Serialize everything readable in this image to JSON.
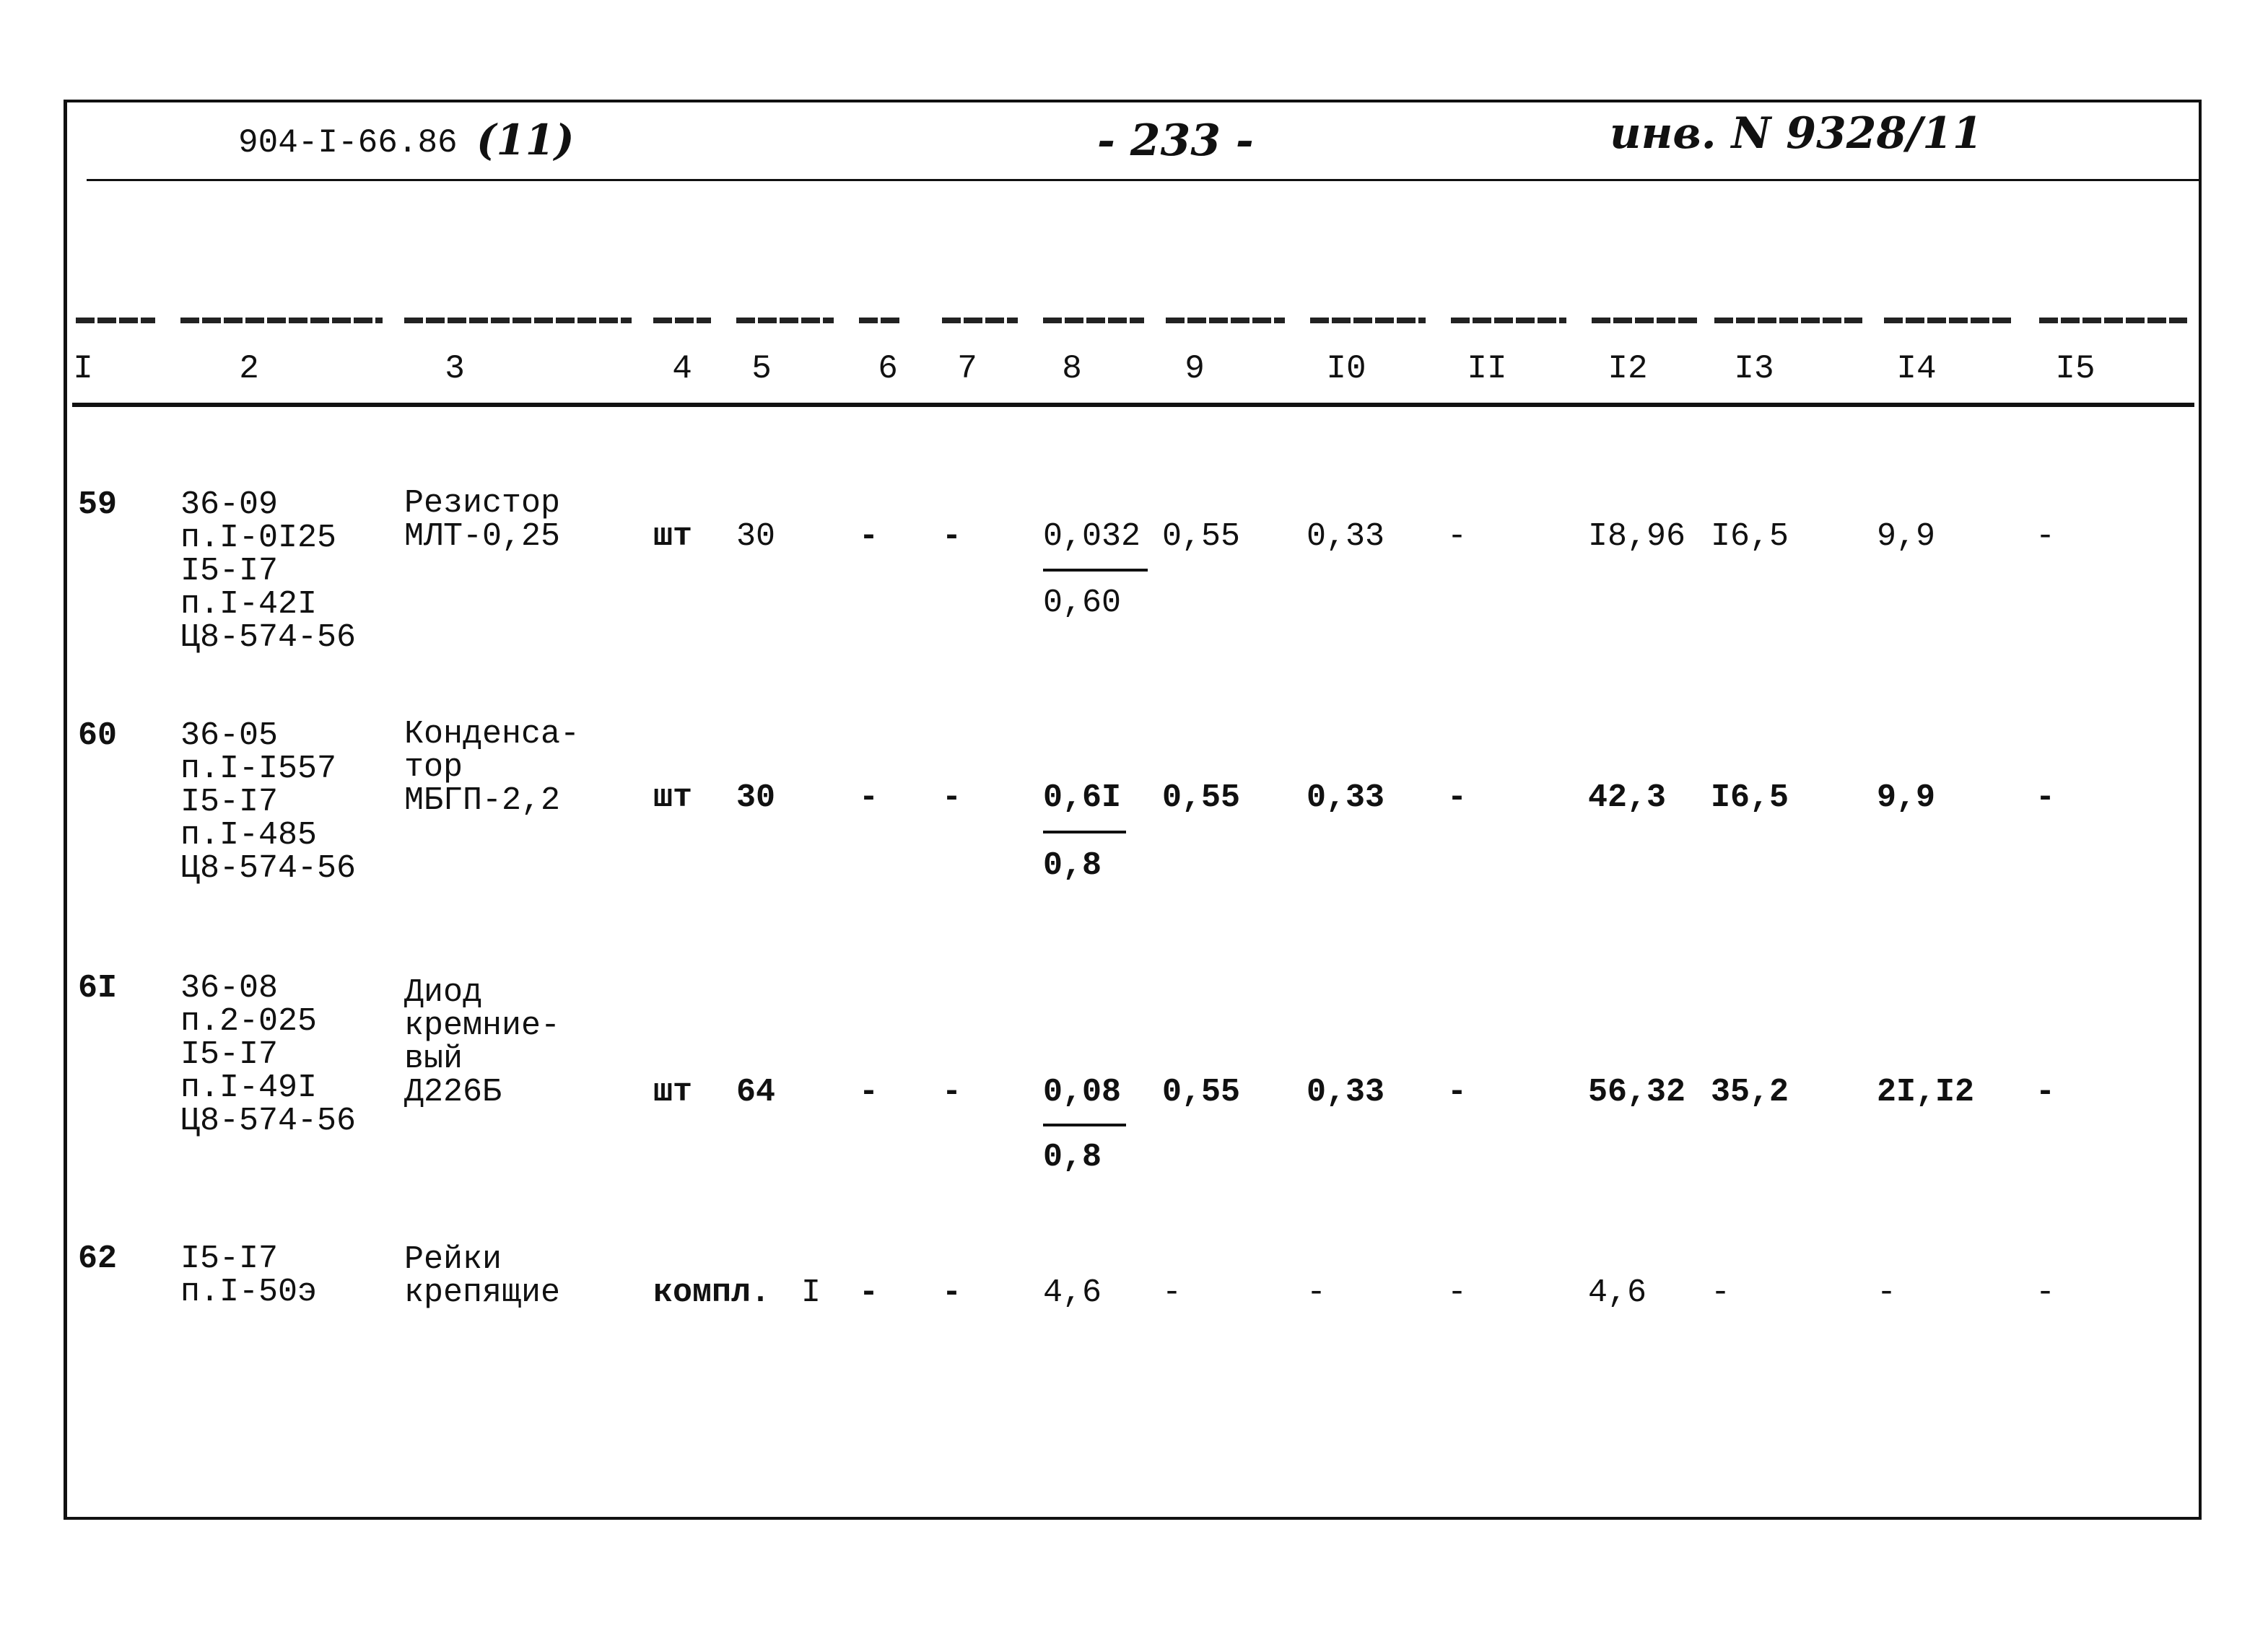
{
  "header": {
    "doc_code": "904-I-66.86",
    "doc_part": "(11)",
    "page": "- 233 -",
    "inventory": "инв. N 9328/11"
  },
  "columns": [
    "I",
    "2",
    "3",
    "4",
    "5",
    "6",
    "7",
    "8",
    "9",
    "I0",
    "II",
    "I2",
    "I3",
    "I4",
    "I5"
  ],
  "rows": [
    {
      "c1": "59",
      "c2": [
        "36-09",
        "п.I-0I25",
        "I5-I7",
        "п.I-42I",
        "Ц8-574-56"
      ],
      "c3": [
        "Резистор",
        "МЛТ-0,25"
      ],
      "c4": "шт",
      "c5": "30",
      "c6": "-",
      "c7": "-",
      "c8_num": "0,032",
      "c8_den": "0,60",
      "c9": "0,55",
      "c10": "0,33",
      "c11": "-",
      "c12": "I8,96",
      "c13": "I6,5",
      "c14": "9,9",
      "c15": "-"
    },
    {
      "c1": "60",
      "c2": [
        "36-05",
        "п.I-I557",
        "I5-I7",
        "п.I-485",
        "Ц8-574-56"
      ],
      "c3": [
        "Конденса-",
        "тор",
        "МБГП-2,2"
      ],
      "c4": "шт",
      "c5": "30",
      "c6": "-",
      "c7": "-",
      "c8_num": "0,6I",
      "c8_den": "0,8",
      "c9": "0,55",
      "c10": "0,33",
      "c11": "-",
      "c12": "42,3",
      "c13": "I6,5",
      "c14": "9,9",
      "c15": "-"
    },
    {
      "c1": "6I",
      "c2": [
        "36-08",
        "п.2-025",
        "I5-I7",
        "п.I-49I",
        "Ц8-574-56"
      ],
      "c3": [
        "Диод",
        "кремние-",
        "вый",
        "Д226Б"
      ],
      "c4": "шт",
      "c5": "64",
      "c6": "-",
      "c7": "-",
      "c8_num": "0,08",
      "c8_den": "0,8",
      "c9": "0,55",
      "c10": "0,33",
      "c11": "-",
      "c12": "56,32",
      "c13": "35,2",
      "c14": "2I,I2",
      "c15": "-"
    },
    {
      "c1": "62",
      "c2": [
        "I5-I7",
        "п.I-50э"
      ],
      "c3": [
        "Рейки",
        "крепящие"
      ],
      "c4": "компл.",
      "c5": "I",
      "c6": "-",
      "c7": "-",
      "c8_num": "4,6",
      "c8_den": "",
      "c9": "-",
      "c10": "-",
      "c11": "-",
      "c12": "4,6",
      "c13": "-",
      "c14": "-",
      "c15": "-"
    }
  ]
}
